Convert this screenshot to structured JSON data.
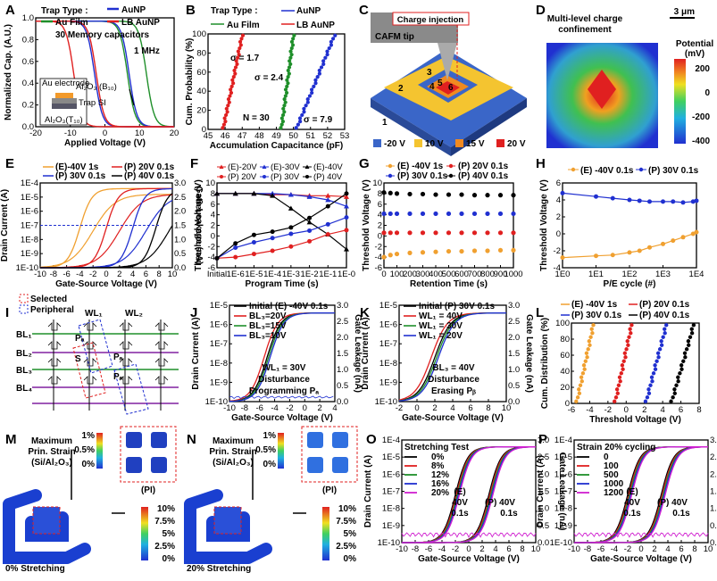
{
  "panels": {
    "A": {
      "label": "A",
      "legend_title": "Trap Type :",
      "legend": [
        "Au Film",
        "AuNP",
        "LB AuNP"
      ],
      "note1": "30 Memory capacitors",
      "note2": "1 MHz",
      "xlabel": "Applied Voltage (V)",
      "ylabel": "Normalized Cap. (A.U.)",
      "xticks": [
        "-20",
        "-10",
        "0",
        "10",
        "20"
      ],
      "yticks": [
        "0.0",
        "0.2",
        "0.4",
        "0.6",
        "0.8",
        "1.0"
      ],
      "inset": [
        "Au electrode",
        "Al₂O₃ (B₁₀)",
        "Trap SI",
        "Al₂O₃(T₁₀)"
      ]
    },
    "B": {
      "label": "B",
      "legend_title": "Trap Type :",
      "legend": [
        "Au Film",
        "AuNP",
        "LB AuNP"
      ],
      "sigmas": [
        "σ = 1.7",
        "σ = 2.4",
        "σ = 7.9"
      ],
      "n": "N = 30",
      "xlabel": "Accumulation Capacitance (pF)",
      "ylabel": "Cum. Probability (%)",
      "xticks": [
        "45",
        "46",
        "47",
        "48",
        "49",
        "50",
        "51",
        "52",
        "53"
      ],
      "yticks": [
        "0",
        "20",
        "40",
        "60",
        "80",
        "100"
      ]
    },
    "C": {
      "label": "C",
      "callout": "Charge injection",
      "tip": "CAFM tip",
      "regions": [
        "1",
        "2",
        "3",
        "4",
        "5",
        "6"
      ],
      "legend": [
        "-20 V",
        "10 V",
        "15 V",
        "20 V"
      ]
    },
    "D": {
      "label": "D",
      "title1": "Multi-level charge",
      "title2": "confinement",
      "scalebar": "3 μm",
      "cb_title": "Potential",
      "cb_unit": "(mV)",
      "cb_ticks": [
        "200",
        "0",
        "-200",
        "-400"
      ]
    },
    "E": {
      "label": "E",
      "legend": [
        "(E)-40V 1s",
        "(P) 20V 0.1s",
        "(P) 30V 0.1s",
        "(P) 40V 0.1s"
      ],
      "xlabel": "Gate-Source Voltage (V)",
      "ylabel": "Drain Current (A)",
      "y2label": "Gate Leakage (nA)",
      "xticks": [
        "-10",
        "-8",
        "-6",
        "-4",
        "-2",
        "0",
        "2",
        "4",
        "6",
        "8",
        "10"
      ],
      "yticks": [
        "1E-10",
        "1E-9",
        "1E-8",
        "1E-7",
        "1E-6",
        "1E-5",
        "1E-4"
      ],
      "y2ticks": [
        "0.0",
        "0.5",
        "1.0",
        "1.5",
        "2.0",
        "2.5",
        "3.0"
      ]
    },
    "F": {
      "label": "F",
      "legend": [
        "(E)-20V",
        "(E)-30V",
        "(E)-40V",
        "(P) 20V",
        "(P) 30V",
        "(P) 40V"
      ],
      "xlabel": "Program Time (s)",
      "ylabel": "Threshold Voltage (V)",
      "xticks": [
        "Initial",
        "1E-6",
        "1E-5",
        "1E-4",
        "1E-3",
        "1E-2",
        "1E-1",
        "1E-0"
      ],
      "yticks": [
        "-6",
        "-4",
        "-2",
        "0",
        "2",
        "4",
        "6",
        "8",
        "10"
      ]
    },
    "G": {
      "label": "G",
      "legend": [
        "(E) -40V 1s",
        "(P) 20V 0.1s",
        "(P) 30V 0.1s",
        "(P) 40V 0.1s"
      ],
      "xlabel": "Retention Time (s)",
      "ylabel": "Threshold Voltage (V)",
      "xticks": [
        "0",
        "100",
        "200",
        "300",
        "400",
        "500",
        "600",
        "700",
        "800",
        "900",
        "1000"
      ],
      "yticks": [
        "-6",
        "-4",
        "-2",
        "0",
        "2",
        "4",
        "6",
        "8",
        "10"
      ]
    },
    "H": {
      "label": "H",
      "legend": [
        "(E) -40V 0.1s",
        "(P) 30V 0.1s"
      ],
      "xlabel": "P/E cycle (#)",
      "ylabel": "Threshold Voltage (V)",
      "xticks": [
        "1E0",
        "1E1",
        "1E2",
        "1E3",
        "1E4"
      ],
      "yticks": [
        "-4",
        "-2",
        "0",
        "2",
        "4",
        "6"
      ]
    },
    "I": {
      "label": "I",
      "legend": [
        "Selected",
        "Peripheral"
      ],
      "wl": [
        "WL₁",
        "WL₂"
      ],
      "bl": [
        "BL₁",
        "BL₂",
        "BL₃",
        "BL₄"
      ],
      "marks": [
        "Pₐ",
        "S",
        "Pₐ",
        "Pₐ"
      ]
    },
    "J": {
      "label": "J",
      "legend": [
        "Initial (E) -40V 0.1s",
        "BL₃=20V",
        "BL₃=15V",
        "BL₃=10V"
      ],
      "note": [
        "WL₁ = 30V",
        "Disturbance",
        "Programming Pₐ"
      ],
      "xlabel": "Gate-Source Voltage (V)",
      "ylabel": "Drain Current (A)",
      "y2label": "Gate Leakage (nA)",
      "xticks": [
        "-10",
        "-8",
        "-6",
        "-4",
        "-2",
        "0",
        "2",
        "4"
      ],
      "yticks": [
        "1E-10",
        "1E-9",
        "1E-8",
        "1E-7",
        "1E-6",
        "1E-5"
      ],
      "y2ticks": [
        "0.0",
        "0.5",
        "1.0",
        "1.5",
        "2.0",
        "2.5",
        "3.0"
      ]
    },
    "K": {
      "label": "K",
      "legend": [
        "Initial (P) 30V 0.1s",
        "WL₁ = 40V",
        "WL₁ = 30V",
        "WL₁ = 20V"
      ],
      "note": [
        "BL₃ = 40V",
        "Disturbance",
        "Erasing Pᵦ"
      ],
      "xlabel": "Gate-Source Voltage (V)",
      "ylabel": "Drain Current (A)",
      "y2label": "Gate Leakage (nA)",
      "xticks": [
        "-2",
        "0",
        "2",
        "4",
        "6",
        "8",
        "10"
      ],
      "yticks": [
        "1E-10",
        "1E-9",
        "1E-8",
        "1E-7",
        "1E-6",
        "1E-5"
      ],
      "y2ticks": [
        "0.0",
        "0.5",
        "1.0",
        "1.5",
        "2.0",
        "2.5",
        "3.0"
      ]
    },
    "L": {
      "label": "L",
      "legend": [
        "(E) -40V 1s",
        "(P) 20V 0.1s",
        "(P) 30V 0.1s",
        "(P) 40V 0.1s"
      ],
      "xlabel": "Threshold Voltage (V)",
      "ylabel": "Cum. Distribution (%)",
      "xticks": [
        "-6",
        "-4",
        "-2",
        "0",
        "2",
        "4",
        "6",
        "8"
      ],
      "yticks": [
        "0",
        "20",
        "40",
        "60",
        "80",
        "100"
      ]
    },
    "M": {
      "label": "M",
      "t1": "Maximum",
      "t2": "Prin. Strain",
      "t3": "(Si/Al₂O₃)",
      "small_ticks": [
        "1%",
        "0.5%",
        "0%"
      ],
      "pi": "(PI)",
      "big_ticks": [
        "10%",
        "7.5%",
        "5%",
        "2.5%",
        "0%"
      ],
      "caption": "0% Stretching"
    },
    "N": {
      "label": "N",
      "t1": "Maximum",
      "t2": "Prin. Strain",
      "t3": "(Si/Al₂O₃)",
      "small_ticks": [
        "1%",
        "0.5%",
        "0%"
      ],
      "pi": "(PI)",
      "big_ticks": [
        "10%",
        "7.5%",
        "5%",
        "2.5%",
        "0%"
      ],
      "caption": "20% Stretching"
    },
    "O": {
      "label": "O",
      "legend_title": "Stretching Test",
      "legend": [
        "0%",
        "8%",
        "12%",
        "16%",
        "20%"
      ],
      "ann": [
        "(E)",
        "40V",
        "0.1s",
        "(P) 40V",
        "0.1s"
      ],
      "xlabel": "Gate-Source Voltage (V)",
      "ylabel": "Drain Current (A)",
      "y2label": "Gate Leakage (nA)",
      "xticks": [
        "-10",
        "-8",
        "-6",
        "-4",
        "-2",
        "0",
        "2",
        "4",
        "6",
        "8",
        "10"
      ],
      "yticks": [
        "1E-10",
        "1E-9",
        "1E-8",
        "1E-7",
        "1E-6",
        "1E-5",
        "1E-4"
      ],
      "y2ticks": [
        "0.0",
        "0.5",
        "1.0",
        "1.5",
        "2.0",
        "2.5",
        "3.0"
      ]
    },
    "P": {
      "label": "P",
      "legend_title": "Strain 20% cycling",
      "legend": [
        "0",
        "100",
        "500",
        "1000",
        "1200"
      ],
      "ann": [
        "(E)",
        "40V",
        "0.1s",
        "(P) 40V",
        "0.1s"
      ],
      "xlabel": "Gate-Source Voltage (V)",
      "ylabel": "Drain Current (A)",
      "y2label": "Gate Leakage (nA)",
      "xticks": [
        "-10",
        "-8",
        "-6",
        "-4",
        "-2",
        "0",
        "2",
        "4",
        "6",
        "8",
        "10"
      ],
      "yticks": [
        "1E-10",
        "1E-9",
        "1E-8",
        "1E-7",
        "1E-6",
        "1E-5",
        "1E-4"
      ],
      "y2ticks": [
        "0.0",
        "0.5",
        "1.0",
        "1.5",
        "2.0",
        "2.5",
        "3.0"
      ]
    }
  },
  "colors": {
    "green": "#1f8f2a",
    "blue": "#2030d0",
    "red": "#e02020",
    "orange": "#f0a030",
    "black": "#000000",
    "purple": "#8020a0",
    "magenta": "#d020d0"
  },
  "chart_data": [
    {
      "panel": "A",
      "type": "line",
      "xlabel": "Applied Voltage (V)",
      "ylabel": "Normalized Cap. (A.U.)",
      "xlim": [
        -20,
        20
      ],
      "ylim": [
        0,
        1.0
      ],
      "series": [
        {
          "name": "Au Film",
          "color": "green",
          "centers": [
            6.5,
            12
          ]
        },
        {
          "name": "AuNP",
          "color": "blue",
          "centers": [
            -3,
            7
          ]
        },
        {
          "name": "LB AuNP",
          "color": "red",
          "centers": [
            -9,
            -2.5
          ]
        }
      ]
    },
    {
      "panel": "B",
      "type": "scatter",
      "xlabel": "Accumulation Capacitance (pF)",
      "ylabel": "Cum. Probability (%)",
      "xlim": [
        45,
        53
      ],
      "ylim": [
        0,
        100
      ],
      "series": [
        {
          "name": "LB AuNP",
          "color": "red",
          "range": [
            45.9,
            47.0
          ]
        },
        {
          "name": "Au Film",
          "color": "green",
          "range": [
            49.3,
            50.0
          ]
        },
        {
          "name": "AuNP",
          "color": "blue",
          "range": [
            50.2,
            52.4
          ]
        }
      ]
    },
    {
      "panel": "E",
      "type": "line",
      "xlabel": "Gate-Source Voltage (V)",
      "ylabel": "Drain Current (A)",
      "xlim": [
        -10,
        10
      ],
      "ylim_log": [
        -10,
        -4
      ],
      "series": [
        {
          "name": "(E)-40V 1s",
          "color": "orange",
          "vth": -4
        },
        {
          "name": "(P) 20V 0.1s",
          "color": "red",
          "vth": 0
        },
        {
          "name": "(P) 30V 0.1s",
          "color": "blue",
          "vth": 4
        },
        {
          "name": "(P) 40V 0.1s",
          "color": "black",
          "vth": 7.5
        }
      ]
    },
    {
      "panel": "F",
      "type": "line",
      "xlabel": "Program Time (s)",
      "ylabel": "Threshold Voltage (V)",
      "categories": [
        "Initial",
        "1E-6",
        "1E-5",
        "1E-4",
        "1E-3",
        "1E-2",
        "1E-1",
        "1E-0"
      ],
      "ylim": [
        -6,
        10
      ],
      "series": [
        {
          "name": "(E)-20V",
          "color": "red",
          "marker": "tri",
          "values": [
            8,
            8,
            8,
            7.8,
            7.8,
            7.6,
            7.6,
            7.4
          ]
        },
        {
          "name": "(E)-30V",
          "color": "blue",
          "marker": "tri",
          "values": [
            8,
            8,
            8,
            8,
            7.8,
            7.4,
            6.8,
            5.6
          ]
        },
        {
          "name": "(E)-40V",
          "color": "black",
          "marker": "tri",
          "values": [
            8,
            8,
            8,
            7.6,
            5.2,
            2.6,
            0.3,
            -2.5
          ]
        },
        {
          "name": "(P) 20V",
          "color": "red",
          "marker": "dot",
          "values": [
            -4.2,
            -4.0,
            -3.4,
            -2.8,
            -2.0,
            -1.0,
            0.3,
            1.1
          ]
        },
        {
          "name": "(P) 30V",
          "color": "blue",
          "marker": "dot",
          "values": [
            -4.2,
            -2.2,
            -1.2,
            -0.4,
            0.4,
            1.0,
            2.2,
            3.5
          ]
        },
        {
          "name": "(P) 40V",
          "color": "black",
          "marker": "dot",
          "values": [
            -4.2,
            -1.4,
            0.2,
            0.8,
            1.6,
            3.4,
            5.6,
            8.0
          ]
        }
      ]
    },
    {
      "panel": "G",
      "type": "line",
      "xlabel": "Retention Time (s)",
      "ylabel": "Threshold Voltage (V)",
      "xlim": [
        0,
        1000
      ],
      "ylim": [
        -6,
        10
      ],
      "x": [
        0,
        50,
        100,
        200,
        300,
        400,
        500,
        600,
        700,
        800,
        900,
        1000
      ],
      "series": [
        {
          "name": "(E) -40V 1s",
          "color": "orange",
          "values": [
            -4,
            -3.6,
            -3.4,
            -3.2,
            -3.1,
            -3.0,
            -2.9,
            -2.9,
            -2.8,
            -2.8,
            -2.7,
            -2.7
          ]
        },
        {
          "name": "(P) 20V 0.1s",
          "color": "red",
          "values": [
            0.6,
            0.6,
            0.6,
            0.6,
            0.6,
            0.6,
            0.6,
            0.6,
            0.6,
            0.6,
            0.6,
            0.6
          ]
        },
        {
          "name": "(P) 30V 0.1s",
          "color": "blue",
          "values": [
            4.2,
            4.2,
            4.2,
            4.2,
            4.2,
            4.2,
            4.2,
            4.2,
            4.2,
            4.2,
            4.2,
            4.2
          ]
        },
        {
          "name": "(P) 40V 0.1s",
          "color": "black",
          "values": [
            8.2,
            8.1,
            8.0,
            7.9,
            7.9,
            7.8,
            7.8,
            7.8,
            7.7,
            7.7,
            7.7,
            7.7
          ]
        }
      ]
    },
    {
      "panel": "H",
      "type": "line",
      "xlabel": "P/E cycle (#)",
      "ylabel": "Threshold Voltage (V)",
      "xlim_log": [
        0,
        4
      ],
      "ylim": [
        -4,
        6
      ],
      "x_log": [
        0,
        1,
        1.5,
        2,
        2.3,
        2.6,
        3,
        3.3,
        3.6,
        3.9,
        4
      ],
      "series": [
        {
          "name": "(E) -40V 0.1s",
          "color": "orange",
          "values": [
            -2.8,
            -2.6,
            -2.5,
            -2.2,
            -2.0,
            -1.6,
            -1.2,
            -0.8,
            -0.4,
            0.0,
            0.2
          ]
        },
        {
          "name": "(P) 30V 0.1s",
          "color": "blue",
          "values": [
            4.8,
            4.4,
            4.2,
            4.0,
            3.9,
            3.8,
            3.8,
            3.8,
            3.7,
            3.8,
            3.9
          ]
        }
      ]
    },
    {
      "panel": "J",
      "type": "line",
      "xlabel": "Gate-Source Voltage (V)",
      "ylabel": "Drain Current (A)",
      "xlim": [
        -10,
        4
      ],
      "ylim_log": [
        -10,
        -5
      ],
      "series": [
        {
          "name": "Initial (E) -40V 0.1s",
          "color": "black",
          "vth": -5
        },
        {
          "name": "BL₃=20V",
          "color": "red",
          "vth": -5.4
        },
        {
          "name": "BL₃=15V",
          "color": "green",
          "vth": -4.8
        },
        {
          "name": "BL₃=10V",
          "color": "blue",
          "vth": -4.6
        }
      ]
    },
    {
      "panel": "K",
      "type": "line",
      "xlabel": "Gate-Source Voltage (V)",
      "ylabel": "Drain Current (A)",
      "xlim": [
        -2,
        10
      ],
      "ylim_log": [
        -10,
        -5
      ],
      "series": [
        {
          "name": "Initial (P) 30V 0.1s",
          "color": "black",
          "vth": 2
        },
        {
          "name": "WL₁ = 40V",
          "color": "red",
          "vth": 1.6
        },
        {
          "name": "WL₁ = 30V",
          "color": "green",
          "vth": 2.2
        },
        {
          "name": "WL₁ = 20V",
          "color": "blue",
          "vth": 2.4
        }
      ]
    },
    {
      "panel": "L",
      "type": "scatter",
      "xlabel": "Threshold Voltage (V)",
      "ylabel": "Cum. Distribution (%)",
      "xlim": [
        -6,
        8
      ],
      "ylim": [
        0,
        100
      ],
      "series": [
        {
          "name": "(E) -40V 1s",
          "color": "orange",
          "range": [
            -5.4,
            -3.6
          ]
        },
        {
          "name": "(P) 20V 0.1s",
          "color": "red",
          "range": [
            -1.2,
            0.6
          ]
        },
        {
          "name": "(P) 30V 0.1s",
          "color": "blue",
          "range": [
            2.2,
            4.4
          ]
        },
        {
          "name": "(P) 40V 0.1s",
          "color": "black",
          "range": [
            5.0,
            7.4
          ]
        }
      ]
    },
    {
      "panel": "O",
      "type": "line",
      "xlabel": "Gate-Source Voltage (V)",
      "ylabel": "Drain Current (A)",
      "xlim": [
        -10,
        10
      ],
      "ylim_log": [
        -10,
        -4
      ],
      "series": [
        {
          "name": "0%",
          "color": "black"
        },
        {
          "name": "8%",
          "color": "red"
        },
        {
          "name": "12%",
          "color": "green"
        },
        {
          "name": "16%",
          "color": "blue"
        },
        {
          "name": "20%",
          "color": "magenta"
        }
      ]
    },
    {
      "panel": "P",
      "type": "line",
      "xlabel": "Gate-Source Voltage (V)",
      "ylabel": "Drain Current (A)",
      "xlim": [
        -10,
        10
      ],
      "ylim_log": [
        -10,
        -4
      ],
      "series": [
        {
          "name": "0",
          "color": "black"
        },
        {
          "name": "100",
          "color": "red"
        },
        {
          "name": "500",
          "color": "green"
        },
        {
          "name": "1000",
          "color": "blue"
        },
        {
          "name": "1200",
          "color": "magenta"
        }
      ]
    }
  ]
}
